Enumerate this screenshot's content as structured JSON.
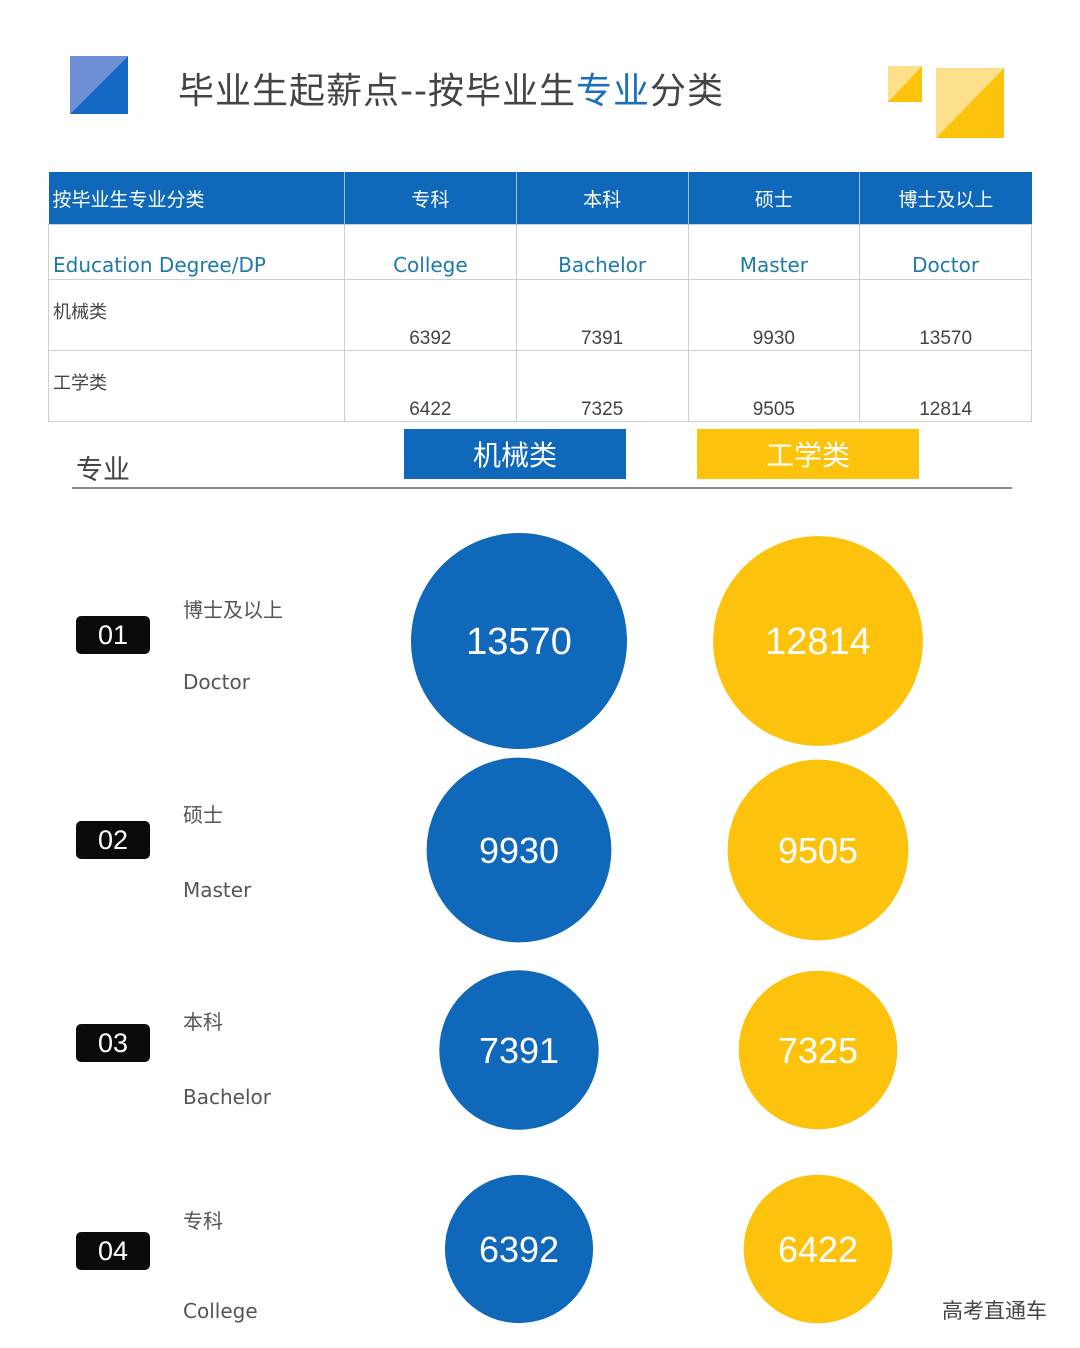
{
  "title": {
    "prefix": "毕业生起薪点--按毕业生",
    "highlight": "专业",
    "suffix": "分类"
  },
  "colors": {
    "blue": "#0f68b9",
    "yellow": "#fdc20c",
    "badge": "#0a0a0a"
  },
  "table": {
    "header": [
      "按毕业生专业分类",
      "专科",
      "本科",
      "硕士",
      "博士及以上"
    ],
    "english_row": [
      "Education  Degree/DP",
      "College",
      "Bachelor",
      "Master",
      "Doctor"
    ],
    "rows": [
      {
        "label": "机械类",
        "values": [
          "6392",
          "7391",
          "9930",
          "13570"
        ]
      },
      {
        "label": "工学类",
        "values": [
          "6422",
          "7325",
          "9505",
          "12814"
        ]
      }
    ]
  },
  "legend": {
    "axis_label": "专业",
    "series1": "机械类",
    "series2": "工学类"
  },
  "chart_data": {
    "type": "bubble",
    "series": [
      {
        "name": "机械类",
        "values": [
          13570,
          9930,
          7391,
          6392
        ]
      },
      {
        "name": "工学类",
        "values": [
          12814,
          9505,
          7325,
          6422
        ]
      }
    ],
    "categories": [
      {
        "index": "01",
        "cn": "博士及以上",
        "en": "Doctor"
      },
      {
        "index": "02",
        "cn": "硕士",
        "en": "Master"
      },
      {
        "index": "03",
        "cn": "本科",
        "en": "Bachelor"
      },
      {
        "index": "04",
        "cn": "专科",
        "en": "College"
      }
    ]
  },
  "watermark": "高考直通车"
}
